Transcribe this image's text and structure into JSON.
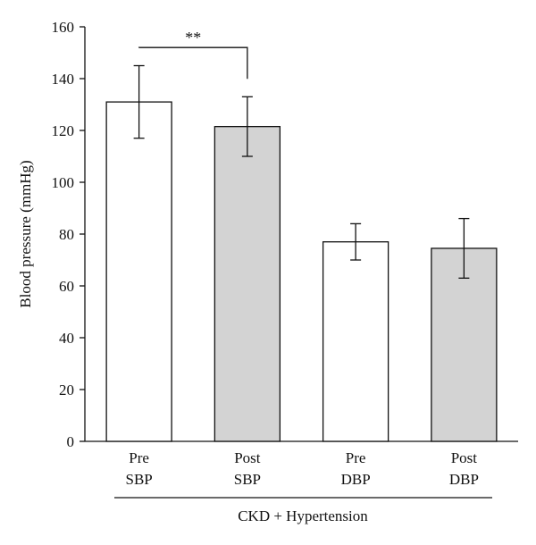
{
  "chart_data": {
    "type": "bar",
    "title": "",
    "xlabel": "",
    "ylabel": "Blood pressure (mmHg)",
    "ylim": [
      0,
      160
    ],
    "yticks": [
      0,
      20,
      40,
      60,
      80,
      100,
      120,
      140,
      160
    ],
    "grid": false,
    "categories": [
      {
        "line1": "Pre",
        "line2": "SBP"
      },
      {
        "line1": "Post",
        "line2": "SBP"
      },
      {
        "line1": "Pre",
        "line2": "DBP"
      },
      {
        "line1": "Post",
        "line2": "DBP"
      }
    ],
    "values": [
      131,
      121.5,
      77,
      74.5
    ],
    "error_low": [
      117,
      110,
      70,
      63
    ],
    "error_high": [
      145,
      133,
      84,
      86
    ],
    "fill_colors": [
      "#ffffff",
      "#d3d3d3",
      "#ffffff",
      "#d3d3d3"
    ],
    "group_label": "CKD + Hypertension",
    "significance": {
      "from": 0,
      "to": 1,
      "label": "**",
      "y": 152
    }
  }
}
